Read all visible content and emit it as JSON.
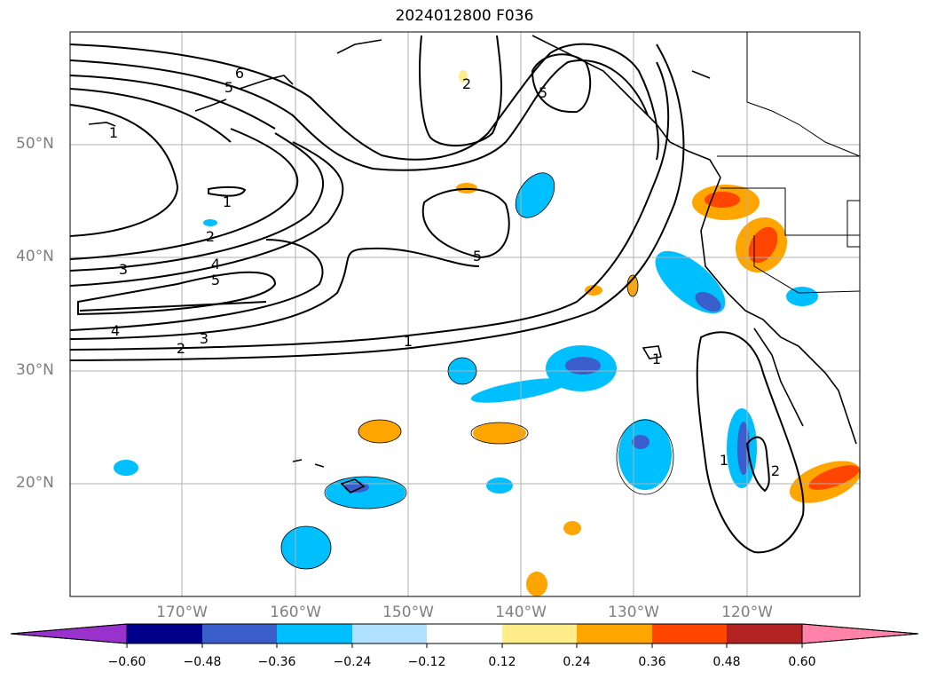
{
  "title": "2024012800 F036",
  "map": {
    "lat_labels": [
      "50°N",
      "40°N",
      "30°N",
      "20°N"
    ],
    "lon_labels": [
      "170°W",
      "160°W",
      "150°W",
      "140°W",
      "130°W",
      "120°W"
    ],
    "contour_labels": [
      "6",
      "5",
      "1",
      "1",
      "2",
      "4",
      "3",
      "5",
      "4",
      "3",
      "2",
      "1",
      "5",
      "2",
      "5",
      "1",
      "1",
      "2"
    ]
  },
  "colorbar": {
    "tick_labels": [
      "−0.60",
      "−0.48",
      "−0.36",
      "−0.24",
      "−0.12",
      "0.12",
      "0.24",
      "0.36",
      "0.48",
      "0.60"
    ],
    "colors": [
      "#9932cc",
      "#00008b",
      "#3a5fcd",
      "#00bfff",
      "#b0e2ff",
      "#ffffff",
      "#ffec8b",
      "#ffa500",
      "#ff4500",
      "#b22222",
      "#ff82ab"
    ]
  },
  "colors": {
    "land_line": "#000000",
    "grid": "#b0b0b0",
    "axis_text": "#7f7f7f"
  }
}
